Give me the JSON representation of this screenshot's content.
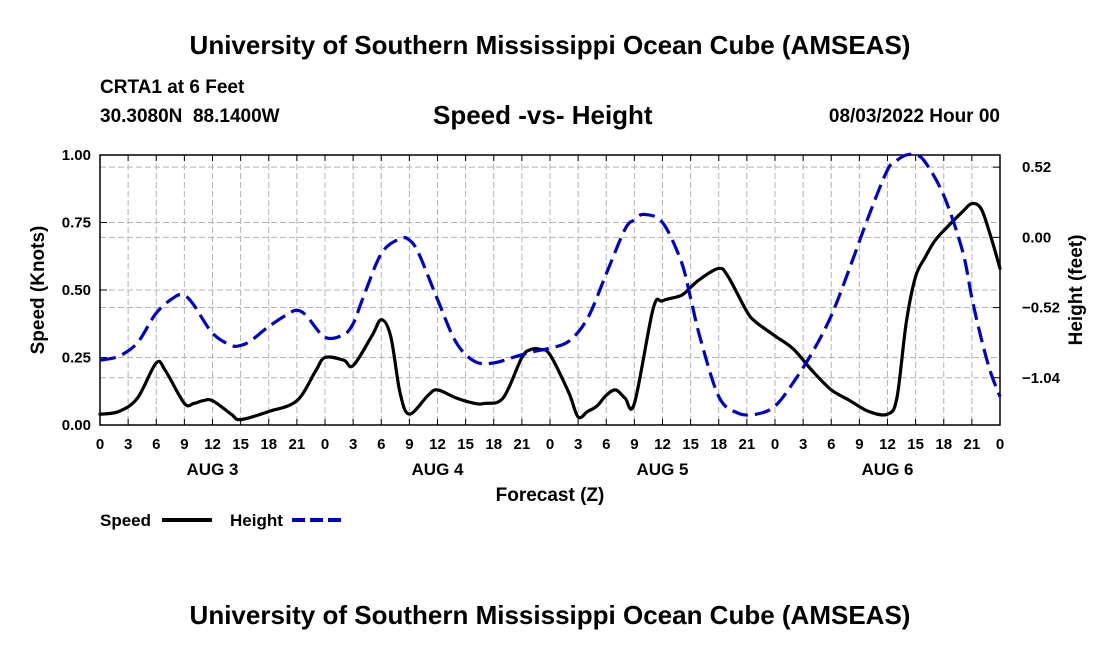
{
  "header": {
    "title": "University of Southern Mississippi Ocean Cube (AMSEAS)",
    "station": "CRTA1 at 6 Feet",
    "coords": "30.3080N  88.1400W",
    "subtitle": "Speed -vs- Height",
    "date": "08/03/2022 Hour 00"
  },
  "footer": {
    "title": "University of Southern Mississippi Ocean Cube (AMSEAS)"
  },
  "chart_data": {
    "type": "line",
    "title": "Speed -vs- Height",
    "xlabel": "Forecast (Z)",
    "ylabel_left": "Speed (Knots)",
    "ylabel_right": "Height (feet)",
    "x_hours_range": [
      0,
      96
    ],
    "x_tick_step_hours": 3,
    "x_tick_labels": [
      "0",
      "3",
      "6",
      "9",
      "12",
      "15",
      "18",
      "21",
      "0",
      "3",
      "6",
      "9",
      "12",
      "15",
      "18",
      "21",
      "0",
      "3",
      "6",
      "9",
      "12",
      "15",
      "18",
      "21",
      "0",
      "3",
      "6",
      "9",
      "12",
      "15",
      "18",
      "21",
      "0"
    ],
    "day_labels": [
      "AUG 3",
      "AUG 4",
      "AUG 5",
      "AUG 6"
    ],
    "day_label_hours": [
      12,
      36,
      60,
      84
    ],
    "ylim_left": [
      0,
      1
    ],
    "yticks_left": [
      0,
      0.25,
      0.5,
      0.75,
      1
    ],
    "ytick_labels_left": [
      "0.00",
      "0.25",
      "0.50",
      "0.75",
      "1.00"
    ],
    "ylim_right": [
      -1.39,
      0.61
    ],
    "yticks_right": [
      -1.04,
      -0.52,
      0,
      0.52
    ],
    "ytick_labels_right": [
      "−1.04",
      "−0.52",
      "0.00",
      "0.52"
    ],
    "grid": true,
    "legend_position": "bottom-left",
    "series": [
      {
        "name": "Speed",
        "color": "#000000",
        "style": "solid",
        "axis": "left",
        "x": [
          0,
          2,
          4,
          6,
          7,
          9,
          10,
          11,
          12,
          14,
          15,
          18,
          21,
          23,
          24,
          26,
          27,
          29,
          30,
          31,
          32,
          33,
          35,
          36,
          38,
          40,
          41,
          43,
          45,
          46,
          47,
          48,
          50,
          51,
          52,
          53,
          54,
          55,
          56,
          57,
          59,
          60,
          62,
          63,
          64,
          66,
          67,
          69,
          70,
          72,
          74,
          76,
          78,
          80,
          82,
          84,
          85,
          86,
          87,
          88,
          89,
          90,
          92,
          93,
          94,
          95,
          96
        ],
        "values": [
          0.04,
          0.05,
          0.1,
          0.23,
          0.2,
          0.08,
          0.08,
          0.09,
          0.09,
          0.04,
          0.02,
          0.05,
          0.09,
          0.2,
          0.25,
          0.24,
          0.22,
          0.33,
          0.39,
          0.33,
          0.12,
          0.04,
          0.11,
          0.13,
          0.1,
          0.08,
          0.08,
          0.1,
          0.25,
          0.28,
          0.28,
          0.26,
          0.12,
          0.03,
          0.05,
          0.07,
          0.11,
          0.13,
          0.1,
          0.08,
          0.43,
          0.46,
          0.48,
          0.51,
          0.54,
          0.58,
          0.55,
          0.42,
          0.38,
          0.33,
          0.28,
          0.2,
          0.13,
          0.09,
          0.05,
          0.04,
          0.1,
          0.38,
          0.55,
          0.62,
          0.68,
          0.72,
          0.79,
          0.82,
          0.8,
          0.7,
          0.58
        ]
      },
      {
        "name": "Height",
        "color": "#0000cc",
        "style": "dashed",
        "axis": "right",
        "x": [
          0,
          2,
          4,
          6,
          8,
          9,
          10,
          12,
          14,
          15,
          16,
          18,
          20,
          21,
          22,
          24,
          26,
          27,
          28,
          30,
          32,
          33,
          34,
          36,
          38,
          40,
          42,
          44,
          46,
          48,
          50,
          52,
          54,
          56,
          57,
          58,
          60,
          62,
          63,
          64,
          66,
          68,
          70,
          72,
          74,
          76,
          78,
          80,
          82,
          84,
          85,
          86,
          87,
          88,
          90,
          92,
          93,
          94,
          95,
          96
        ],
        "values": [
          -0.91,
          -0.88,
          -0.78,
          -0.56,
          -0.44,
          -0.43,
          -0.5,
          -0.71,
          -0.8,
          -0.8,
          -0.77,
          -0.66,
          -0.57,
          -0.54,
          -0.58,
          -0.74,
          -0.72,
          -0.64,
          -0.46,
          -0.12,
          -0.01,
          -0.02,
          -0.12,
          -0.46,
          -0.78,
          -0.92,
          -0.93,
          -0.89,
          -0.85,
          -0.82,
          -0.77,
          -0.6,
          -0.27,
          0.06,
          0.13,
          0.17,
          0.11,
          -0.18,
          -0.45,
          -0.74,
          -1.18,
          -1.3,
          -1.31,
          -1.25,
          -1.07,
          -0.85,
          -0.58,
          -0.22,
          0.16,
          0.5,
          0.57,
          0.61,
          0.61,
          0.56,
          0.31,
          -0.1,
          -0.45,
          -0.75,
          -1.0,
          -1.18
        ]
      }
    ]
  }
}
